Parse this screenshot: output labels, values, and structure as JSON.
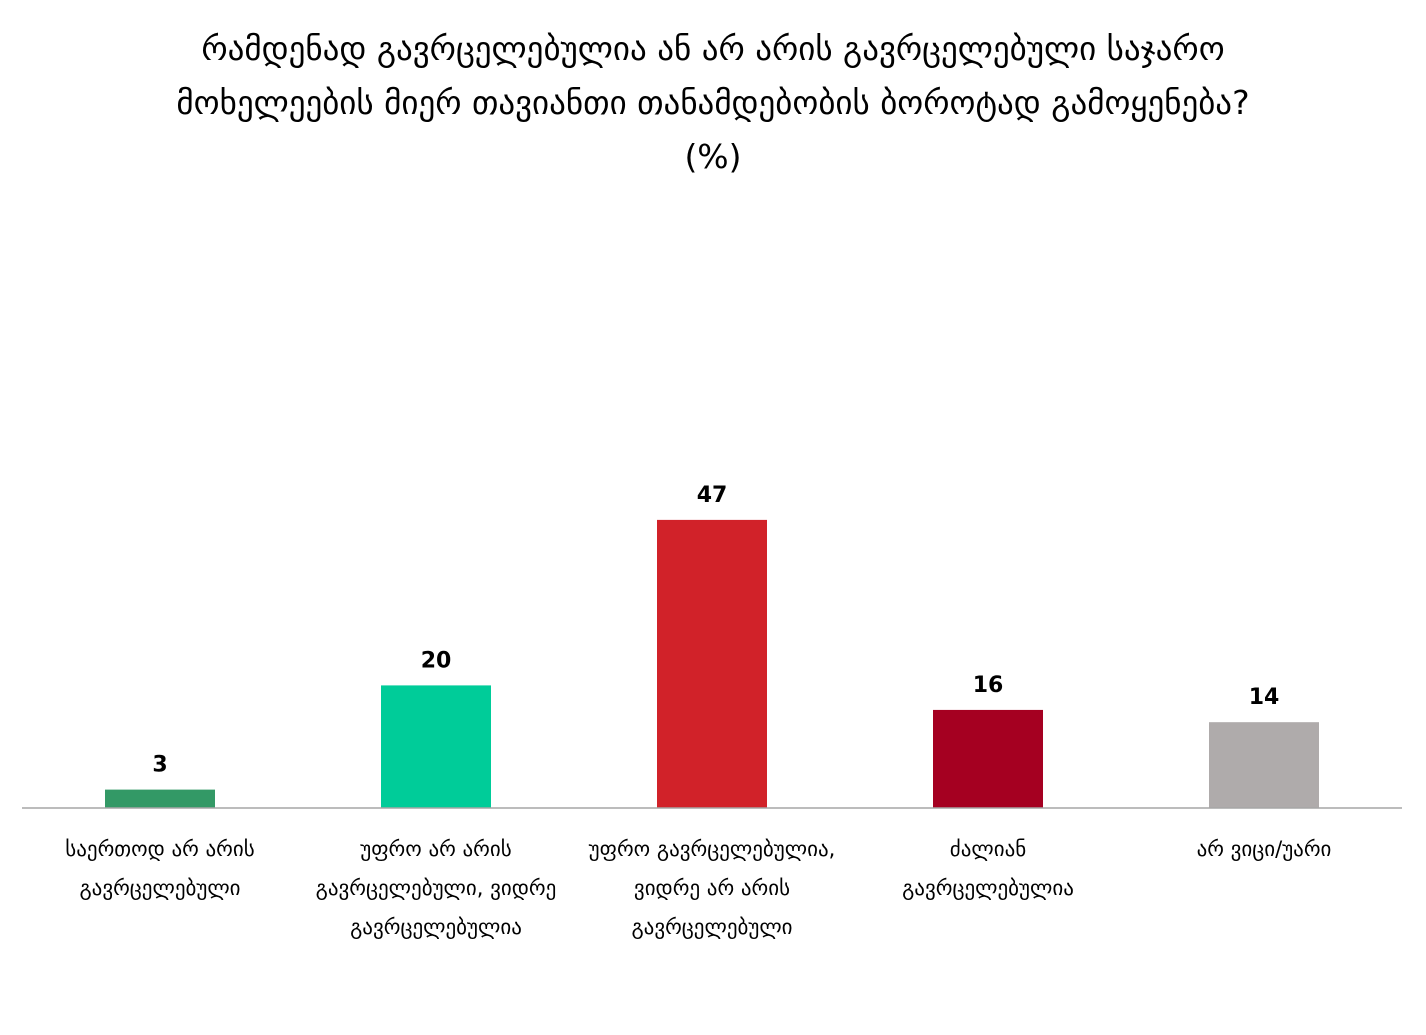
{
  "chart_data": {
    "type": "bar",
    "title": "რამდენად გავრცელებულია ან არ არის გავრცელებული საჯარო მოხელეების მიერ თავიანთი თანამდებობის ბოროტად გამოყენება? (%)",
    "categories": [
      "საერთოდ არ არის გავრცელებული",
      "უფრო არ არის გავრცელებული, ვიდრე გავრცელებულია",
      "უფრო გავრცელებულია, ვიდრე არ არის გავრცელებული",
      "ძალიან გავრცელებულია",
      "არ ვიცი/უარი"
    ],
    "values": [
      3,
      20,
      47,
      16,
      14
    ],
    "colors": [
      "#339966",
      "#00cc99",
      "#d12229",
      "#a50021",
      "#afabab"
    ],
    "ylim": [
      0,
      100
    ]
  }
}
